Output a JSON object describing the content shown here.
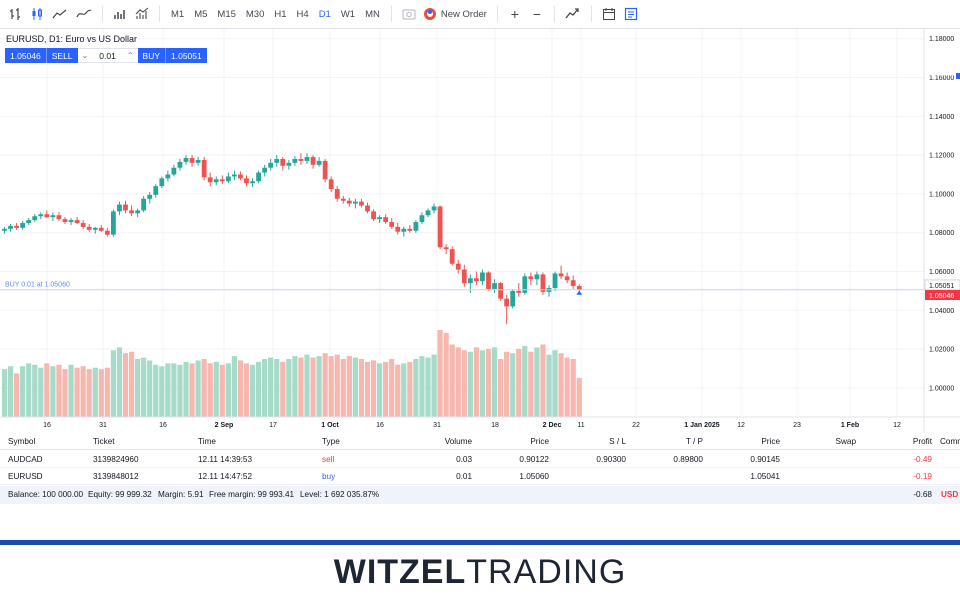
{
  "toolbar": {
    "timeframes": [
      "M1",
      "M5",
      "M15",
      "M30",
      "H1",
      "H4",
      "D1",
      "W1",
      "MN"
    ],
    "active_timeframe": "D1",
    "new_order_label": "New Order",
    "plus_label": "+",
    "minus_label": "−"
  },
  "chart": {
    "symbol_title": "EURUSD, D1: Euro vs US Dollar",
    "sell_price": "1.05046",
    "sell_label": "SELL",
    "quantity": "0.01",
    "buy_label": "BUY",
    "buy_price": "1.05051",
    "position_label": "BUY 0.01 at 1.05060",
    "price_axis": [
      "1.18000",
      "1.16000",
      "1.14000",
      "1.12000",
      "1.10000",
      "1.08000",
      "1.06000",
      "1.04000",
      "1.02000",
      "1.00000"
    ],
    "ask_tag": "1.05051",
    "bid_tag": "1.05046",
    "time_axis": [
      "16",
      "31",
      "16",
      "2 Sep",
      "17",
      "1 Oct",
      "16",
      "31",
      "18",
      "2 Dec",
      "11",
      "22",
      "1 Jan 2025",
      "12",
      "23",
      "1 Feb",
      "12"
    ],
    "colors": {
      "up": "#26a69a",
      "down": "#ef5350",
      "up_volume": "#a5dbc8",
      "down_volume": "#f7b6ae",
      "accent": "#2962ff"
    }
  },
  "chart_data": {
    "type": "candlestick",
    "symbol": "EURUSD",
    "timeframe": "D1",
    "ylim": [
      0.985,
      1.185
    ],
    "candles": [
      [
        1.081,
        1.083,
        1.0795,
        1.082
      ],
      [
        1.082,
        1.0845,
        1.0805,
        1.0835
      ],
      [
        1.0835,
        1.085,
        1.0815,
        1.0825
      ],
      [
        1.0825,
        1.086,
        1.0815,
        1.085
      ],
      [
        1.085,
        1.0875,
        1.084,
        1.0865
      ],
      [
        1.0865,
        1.0895,
        1.0855,
        1.0885
      ],
      [
        1.0885,
        1.0905,
        1.087,
        1.0895
      ],
      [
        1.0895,
        1.0915,
        1.0875,
        1.088
      ],
      [
        1.088,
        1.0905,
        1.086,
        1.089
      ],
      [
        1.089,
        1.0905,
        1.086,
        1.087
      ],
      [
        1.087,
        1.088,
        1.0845,
        1.0855
      ],
      [
        1.0855,
        1.0875,
        1.084,
        1.0865
      ],
      [
        1.0865,
        1.088,
        1.0845,
        1.085
      ],
      [
        1.085,
        1.0865,
        1.082,
        1.083
      ],
      [
        1.083,
        1.0845,
        1.0805,
        1.0815
      ],
      [
        1.0815,
        1.083,
        1.0795,
        1.0825
      ],
      [
        1.0825,
        1.084,
        1.0805,
        1.081
      ],
      [
        1.081,
        1.0825,
        1.078,
        1.079
      ],
      [
        1.079,
        1.092,
        1.078,
        1.091
      ],
      [
        1.091,
        1.096,
        1.089,
        1.0945
      ],
      [
        1.0945,
        1.0965,
        1.09,
        1.0915
      ],
      [
        1.0915,
        1.094,
        1.0885,
        1.09
      ],
      [
        1.09,
        1.0925,
        1.088,
        1.0915
      ],
      [
        1.0915,
        1.099,
        1.0905,
        1.0975
      ],
      [
        1.0975,
        1.101,
        1.095,
        1.0995
      ],
      [
        1.0995,
        1.105,
        1.098,
        1.104
      ],
      [
        1.104,
        1.109,
        1.103,
        1.108
      ],
      [
        1.108,
        1.112,
        1.1065,
        1.11
      ],
      [
        1.11,
        1.115,
        1.109,
        1.1135
      ],
      [
        1.1135,
        1.118,
        1.112,
        1.1165
      ],
      [
        1.1165,
        1.12,
        1.115,
        1.1185
      ],
      [
        1.1185,
        1.12,
        1.114,
        1.116
      ],
      [
        1.116,
        1.119,
        1.1145,
        1.1175
      ],
      [
        1.1175,
        1.119,
        1.107,
        1.1085
      ],
      [
        1.1085,
        1.111,
        1.104,
        1.106
      ],
      [
        1.106,
        1.109,
        1.1045,
        1.1075
      ],
      [
        1.1075,
        1.1095,
        1.105,
        1.1065
      ],
      [
        1.1065,
        1.111,
        1.1055,
        1.109
      ],
      [
        1.109,
        1.112,
        1.107,
        1.11
      ],
      [
        1.11,
        1.1115,
        1.107,
        1.108
      ],
      [
        1.108,
        1.1095,
        1.104,
        1.1055
      ],
      [
        1.1055,
        1.108,
        1.1035,
        1.1065
      ],
      [
        1.1065,
        1.112,
        1.1055,
        1.111
      ],
      [
        1.111,
        1.115,
        1.109,
        1.1135
      ],
      [
        1.1135,
        1.118,
        1.112,
        1.116
      ],
      [
        1.116,
        1.12,
        1.114,
        1.118
      ],
      [
        1.118,
        1.119,
        1.112,
        1.1145
      ],
      [
        1.1145,
        1.1175,
        1.1125,
        1.116
      ],
      [
        1.116,
        1.1195,
        1.1145,
        1.118
      ],
      [
        1.118,
        1.121,
        1.115,
        1.117
      ],
      [
        1.117,
        1.121,
        1.1155,
        1.119
      ],
      [
        1.119,
        1.12,
        1.113,
        1.115
      ],
      [
        1.115,
        1.119,
        1.114,
        1.117
      ],
      [
        1.117,
        1.118,
        1.106,
        1.1075
      ],
      [
        1.1075,
        1.109,
        1.101,
        1.1025
      ],
      [
        1.1025,
        1.104,
        1.096,
        1.0975
      ],
      [
        1.0975,
        1.099,
        1.095,
        1.0965
      ],
      [
        1.0965,
        1.098,
        1.0935,
        1.095
      ],
      [
        1.095,
        1.0975,
        1.0925,
        1.096
      ],
      [
        1.096,
        1.0975,
        1.093,
        1.094
      ],
      [
        1.094,
        1.0955,
        1.09,
        1.091
      ],
      [
        1.091,
        1.092,
        1.086,
        1.087
      ],
      [
        1.087,
        1.089,
        1.085,
        1.088
      ],
      [
        1.088,
        1.0895,
        1.0845,
        1.0855
      ],
      [
        1.0855,
        1.0875,
        1.082,
        1.083
      ],
      [
        1.083,
        1.085,
        1.079,
        1.0805
      ],
      [
        1.0805,
        1.083,
        1.078,
        1.082
      ],
      [
        1.082,
        1.084,
        1.08,
        1.081
      ],
      [
        1.081,
        1.0865,
        1.08,
        1.0855
      ],
      [
        1.0855,
        1.0905,
        1.0845,
        1.089
      ],
      [
        1.089,
        1.0925,
        1.088,
        1.0915
      ],
      [
        1.0915,
        1.095,
        1.09,
        1.0935
      ],
      [
        1.0935,
        1.094,
        1.0715,
        1.0725
      ],
      [
        1.0725,
        1.074,
        1.069,
        1.0715
      ],
      [
        1.0715,
        1.073,
        1.063,
        1.064
      ],
      [
        1.064,
        1.066,
        1.059,
        1.061
      ],
      [
        1.061,
        1.0635,
        1.052,
        1.054
      ],
      [
        1.054,
        1.0585,
        1.049,
        1.0565
      ],
      [
        1.0565,
        1.06,
        1.053,
        1.055
      ],
      [
        1.055,
        1.061,
        1.053,
        1.0595
      ],
      [
        1.0595,
        1.06,
        1.05,
        1.051
      ],
      [
        1.051,
        1.056,
        1.049,
        1.054
      ],
      [
        1.054,
        1.0545,
        1.045,
        1.046
      ],
      [
        1.046,
        1.048,
        1.033,
        1.042
      ],
      [
        1.042,
        1.051,
        1.041,
        1.05
      ],
      [
        1.05,
        1.054,
        1.047,
        1.049
      ],
      [
        1.049,
        1.059,
        1.048,
        1.0575
      ],
      [
        1.0575,
        1.0595,
        1.053,
        1.056
      ],
      [
        1.056,
        1.06,
        1.053,
        1.0585
      ],
      [
        1.0585,
        1.0595,
        1.048,
        1.0495
      ],
      [
        1.0495,
        1.053,
        1.047,
        1.0515
      ],
      [
        1.0515,
        1.06,
        1.05,
        1.059
      ],
      [
        1.059,
        1.063,
        1.056,
        1.0575
      ],
      [
        1.0575,
        1.0595,
        1.054,
        1.0555
      ],
      [
        1.0555,
        1.058,
        1.051,
        1.0525
      ],
      [
        1.0525,
        1.0535,
        1.049,
        1.0505
      ]
    ],
    "volume": [
      33,
      35,
      30,
      35,
      37,
      36,
      34,
      37,
      35,
      36,
      33,
      36,
      34,
      35,
      33,
      34,
      33,
      34,
      46,
      48,
      44,
      45,
      40,
      41,
      39,
      36,
      35,
      37,
      37,
      36,
      38,
      37,
      39,
      40,
      37,
      38,
      36,
      37,
      42,
      39,
      37,
      36,
      38,
      40,
      41,
      40,
      38,
      40,
      42,
      41,
      43,
      41,
      42,
      44,
      42,
      43,
      40,
      42,
      41,
      40,
      38,
      39,
      37,
      38,
      40,
      36,
      37,
      38,
      40,
      42,
      41,
      43,
      60,
      58,
      50,
      48,
      46,
      45,
      48,
      46,
      47,
      48,
      40,
      45,
      44,
      47,
      49,
      45,
      48,
      50,
      43,
      46,
      44,
      41,
      40,
      27
    ],
    "position": {
      "side": "buy",
      "price": 1.0506,
      "volume": 0.01
    },
    "bid": 1.05046,
    "ask": 1.05051
  },
  "table": {
    "headers": [
      "Symbol",
      "Ticket",
      "Time",
      "Type",
      "Volume",
      "Price",
      "S / L",
      "T / P",
      "Price",
      "Swap",
      "Profit",
      "Comm"
    ],
    "rows": [
      {
        "symbol": "AUDCAD",
        "ticket": "3139824960",
        "time": "12.11 14:39:53",
        "type": "sell",
        "volume": "0.03",
        "price": "0.90122",
        "sl": "0.90300",
        "tp": "0.89800",
        "current": "0.90145",
        "swap": "",
        "profit": "-0.49"
      },
      {
        "symbol": "EURUSD",
        "ticket": "3139848012",
        "time": "12.11 14:47:52",
        "type": "buy",
        "volume": "0.01",
        "price": "1.05060",
        "sl": "",
        "tp": "",
        "current": "1.05041",
        "swap": "",
        "profit": "-0.19"
      }
    ],
    "summary": {
      "balance": "Balance: 100 000.00",
      "equity": "Equity: 99 999.32",
      "margin": "Margin: 5.91",
      "free_margin": "Free margin: 99 993.41",
      "level": "Level: 1 692 035.87%",
      "total": "-0.68",
      "currency": "USD"
    }
  },
  "brand": {
    "w": "W",
    "rest_bold": "ITZEL",
    "rest_light": "TRADING"
  }
}
